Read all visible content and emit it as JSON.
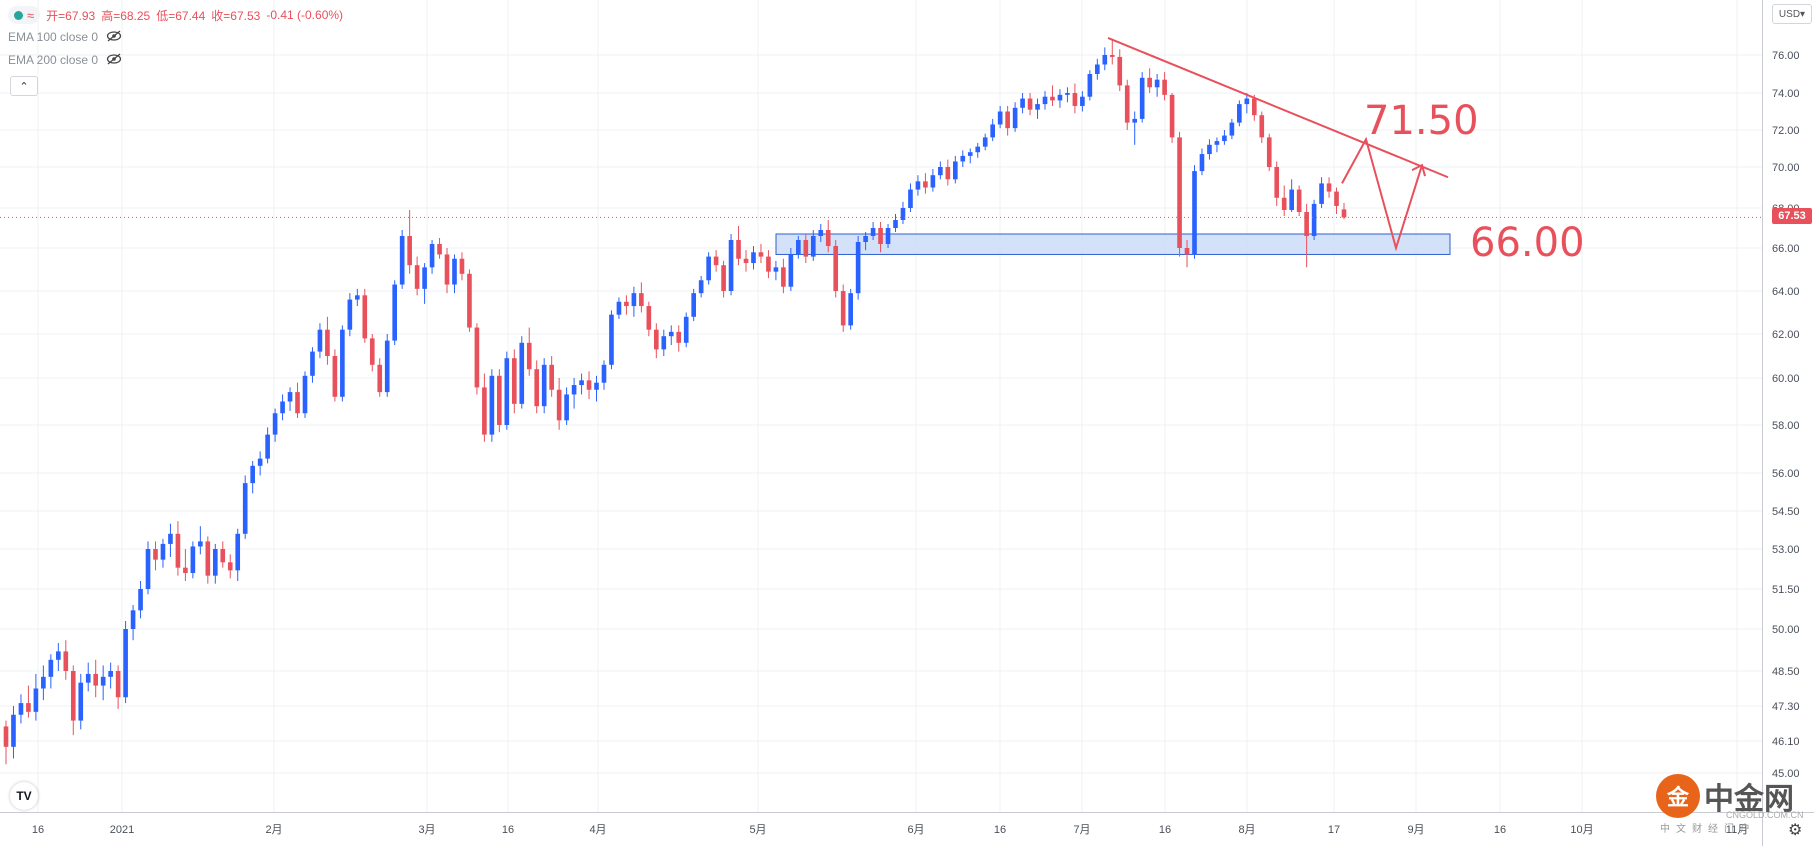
{
  "header": {
    "wave_icon": "≈",
    "open_label": "开=67.93",
    "high_label": "高=68.25",
    "low_label": "低=67.44",
    "close_label": "收=67.53",
    "change_label": "-0.41 (-0.60%)"
  },
  "indicators": [
    {
      "label": "EMA 100 close 0"
    },
    {
      "label": "EMA 200 close 0"
    }
  ],
  "currency": "USD",
  "last_price_label": "67.53",
  "annotations": {
    "upper": "71.50",
    "lower": "66.00"
  },
  "watermark": {
    "title": "中金网",
    "subtitle": "中文财经门户",
    "url": "CNGOLD.COM.CN",
    "logo": "金"
  },
  "colors": {
    "up": "#2962ff",
    "down": "#e8505b",
    "grid": "#eef0f3",
    "zone_fill": "#c9dbf7",
    "zone_stroke": "#2f5fd0",
    "annotation": "#e8505b"
  },
  "chart_data": {
    "type": "candlestick",
    "ylim": [
      44.7,
      77.5
    ],
    "y_ticks": [
      "76.00",
      "74.00",
      "72.00",
      "70.00",
      "68.00",
      "66.00",
      "64.00",
      "62.00",
      "60.00",
      "58.00",
      "56.00",
      "54.50",
      "53.00",
      "51.50",
      "50.00",
      "48.50",
      "47.30",
      "46.10",
      "45.00"
    ],
    "x_ticks": [
      "16",
      "2021",
      "2月",
      "3月",
      "16",
      "4月",
      "5月",
      "6月",
      "16",
      "7月",
      "16",
      "8月",
      "17",
      "9月",
      "16",
      "10月",
      "11月"
    ],
    "last_price": 67.53,
    "support_zone": [
      65.7,
      66.7
    ],
    "resistance_line": {
      "from": {
        "label": "7月",
        "value": 76.9
      },
      "to": {
        "label": "9月",
        "value": 69.5
      }
    },
    "projection": [
      69.2,
      71.5,
      66.0,
      70.1
    ],
    "candles": [
      [
        46.6,
        46.8,
        45.3,
        45.9
      ],
      [
        45.9,
        47.3,
        45.5,
        47.0
      ],
      [
        47.0,
        47.7,
        46.7,
        47.4
      ],
      [
        47.4,
        48.0,
        46.9,
        47.1
      ],
      [
        47.1,
        48.4,
        46.8,
        47.9
      ],
      [
        47.9,
        48.7,
        47.5,
        48.3
      ],
      [
        48.3,
        49.1,
        47.9,
        48.9
      ],
      [
        48.9,
        49.5,
        48.5,
        49.2
      ],
      [
        49.2,
        49.6,
        48.2,
        48.5
      ],
      [
        48.5,
        48.7,
        46.3,
        46.8
      ],
      [
        46.8,
        48.4,
        46.5,
        48.1
      ],
      [
        48.1,
        48.8,
        47.8,
        48.4
      ],
      [
        48.4,
        48.9,
        47.6,
        48.0
      ],
      [
        48.0,
        48.7,
        47.5,
        48.3
      ],
      [
        48.3,
        48.8,
        47.9,
        48.5
      ],
      [
        48.5,
        48.7,
        47.2,
        47.6
      ],
      [
        47.6,
        50.3,
        47.4,
        50.0
      ],
      [
        50.0,
        50.9,
        49.6,
        50.7
      ],
      [
        50.7,
        51.8,
        50.4,
        51.5
      ],
      [
        51.5,
        53.3,
        51.3,
        53.0
      ],
      [
        53.0,
        53.3,
        52.2,
        52.6
      ],
      [
        52.6,
        53.4,
        52.3,
        53.2
      ],
      [
        53.2,
        54.0,
        52.7,
        53.6
      ],
      [
        53.6,
        54.1,
        52.0,
        52.3
      ],
      [
        52.3,
        53.0,
        51.8,
        52.1
      ],
      [
        52.1,
        53.3,
        51.9,
        53.1
      ],
      [
        53.1,
        53.9,
        52.8,
        53.3
      ],
      [
        53.3,
        53.5,
        51.7,
        52.0
      ],
      [
        52.0,
        53.2,
        51.7,
        53.0
      ],
      [
        53.0,
        53.3,
        52.3,
        52.5
      ],
      [
        52.5,
        52.8,
        51.9,
        52.2
      ],
      [
        52.2,
        53.8,
        51.8,
        53.6
      ],
      [
        53.6,
        55.9,
        53.4,
        55.6
      ],
      [
        55.6,
        56.5,
        55.2,
        56.3
      ],
      [
        56.3,
        56.9,
        55.9,
        56.6
      ],
      [
        56.6,
        57.9,
        56.4,
        57.6
      ],
      [
        57.6,
        58.7,
        57.3,
        58.5
      ],
      [
        58.5,
        59.3,
        58.2,
        59.0
      ],
      [
        59.0,
        59.6,
        58.6,
        59.4
      ],
      [
        59.4,
        59.8,
        58.3,
        58.5
      ],
      [
        58.5,
        60.3,
        58.3,
        60.1
      ],
      [
        60.1,
        61.4,
        59.8,
        61.2
      ],
      [
        61.2,
        62.5,
        60.9,
        62.2
      ],
      [
        62.2,
        62.8,
        60.6,
        61.0
      ],
      [
        61.0,
        61.3,
        59.0,
        59.2
      ],
      [
        59.2,
        62.4,
        59.0,
        62.2
      ],
      [
        62.2,
        63.9,
        61.9,
        63.6
      ],
      [
        63.6,
        64.1,
        63.3,
        63.8
      ],
      [
        63.8,
        64.1,
        61.6,
        61.8
      ],
      [
        61.8,
        62.0,
        60.3,
        60.6
      ],
      [
        60.6,
        60.9,
        59.2,
        59.4
      ],
      [
        59.4,
        62.0,
        59.2,
        61.7
      ],
      [
        61.7,
        64.5,
        61.5,
        64.3
      ],
      [
        64.3,
        66.9,
        64.1,
        66.6
      ],
      [
        66.6,
        67.9,
        64.8,
        65.2
      ],
      [
        65.2,
        65.6,
        63.8,
        64.1
      ],
      [
        64.1,
        65.3,
        63.4,
        65.1
      ],
      [
        65.1,
        66.4,
        64.8,
        66.2
      ],
      [
        66.2,
        66.5,
        65.5,
        65.7
      ],
      [
        65.7,
        66.0,
        63.9,
        64.3
      ],
      [
        64.3,
        65.7,
        63.9,
        65.5
      ],
      [
        65.5,
        65.8,
        64.5,
        64.8
      ],
      [
        64.8,
        65.0,
        62.1,
        62.3
      ],
      [
        62.3,
        62.5,
        59.3,
        59.6
      ],
      [
        59.6,
        60.2,
        57.3,
        57.6
      ],
      [
        57.6,
        60.4,
        57.3,
        60.1
      ],
      [
        60.1,
        60.4,
        57.7,
        58.0
      ],
      [
        58.0,
        61.2,
        57.8,
        60.9
      ],
      [
        60.9,
        61.3,
        58.5,
        58.9
      ],
      [
        58.9,
        61.9,
        58.7,
        61.6
      ],
      [
        61.6,
        62.3,
        60.1,
        60.4
      ],
      [
        60.4,
        60.8,
        58.5,
        58.8
      ],
      [
        58.8,
        60.9,
        58.5,
        60.6
      ],
      [
        60.6,
        61.0,
        59.2,
        59.5
      ],
      [
        59.5,
        60.0,
        57.8,
        58.2
      ],
      [
        58.2,
        59.6,
        58.0,
        59.3
      ],
      [
        59.3,
        60.0,
        58.7,
        59.7
      ],
      [
        59.7,
        60.2,
        59.3,
        59.9
      ],
      [
        59.9,
        60.3,
        59.1,
        59.5
      ],
      [
        59.5,
        60.1,
        59.0,
        59.8
      ],
      [
        59.8,
        60.8,
        59.5,
        60.6
      ],
      [
        60.6,
        63.1,
        60.4,
        62.9
      ],
      [
        62.9,
        63.7,
        62.7,
        63.5
      ],
      [
        63.5,
        63.8,
        62.9,
        63.3
      ],
      [
        63.3,
        64.2,
        62.8,
        63.9
      ],
      [
        63.9,
        64.4,
        63.0,
        63.3
      ],
      [
        63.3,
        63.5,
        61.9,
        62.2
      ],
      [
        62.2,
        62.5,
        60.9,
        61.3
      ],
      [
        61.3,
        62.2,
        61.0,
        61.9
      ],
      [
        61.9,
        62.4,
        61.5,
        62.1
      ],
      [
        62.1,
        62.4,
        61.2,
        61.6
      ],
      [
        61.6,
        63.0,
        61.4,
        62.8
      ],
      [
        62.8,
        64.1,
        62.6,
        63.9
      ],
      [
        63.9,
        64.7,
        63.7,
        64.5
      ],
      [
        64.5,
        65.8,
        64.3,
        65.6
      ],
      [
        65.6,
        65.9,
        64.9,
        65.2
      ],
      [
        65.2,
        65.4,
        63.7,
        64.0
      ],
      [
        64.0,
        66.7,
        63.8,
        66.4
      ],
      [
        66.4,
        67.1,
        65.2,
        65.5
      ],
      [
        65.5,
        65.9,
        64.9,
        65.3
      ],
      [
        65.3,
        66.1,
        65.0,
        65.8
      ],
      [
        65.8,
        66.2,
        65.3,
        65.6
      ],
      [
        65.6,
        65.9,
        64.6,
        64.9
      ],
      [
        64.9,
        65.4,
        64.5,
        65.1
      ],
      [
        65.1,
        65.5,
        63.9,
        64.2
      ],
      [
        64.2,
        66.0,
        64.0,
        65.7
      ],
      [
        65.7,
        66.6,
        65.5,
        66.4
      ],
      [
        66.4,
        66.7,
        65.3,
        65.6
      ],
      [
        65.6,
        66.9,
        65.4,
        66.6
      ],
      [
        66.6,
        67.2,
        66.3,
        66.9
      ],
      [
        66.9,
        67.4,
        65.8,
        66.1
      ],
      [
        66.1,
        66.4,
        63.7,
        64.0
      ],
      [
        64.0,
        64.3,
        62.1,
        62.4
      ],
      [
        62.4,
        64.1,
        62.2,
        63.9
      ],
      [
        63.9,
        66.6,
        63.6,
        66.3
      ],
      [
        66.3,
        66.8,
        65.9,
        66.6
      ],
      [
        66.6,
        67.3,
        66.4,
        67.0
      ],
      [
        67.0,
        67.3,
        65.8,
        66.2
      ],
      [
        66.2,
        67.2,
        66.0,
        67.0
      ],
      [
        67.0,
        67.7,
        66.8,
        67.4
      ],
      [
        67.4,
        68.3,
        67.2,
        68.0
      ],
      [
        68.0,
        69.2,
        67.8,
        68.9
      ],
      [
        68.9,
        69.6,
        68.6,
        69.3
      ],
      [
        69.3,
        69.7,
        68.7,
        69.0
      ],
      [
        69.0,
        69.9,
        68.8,
        69.6
      ],
      [
        69.6,
        70.3,
        69.4,
        70.0
      ],
      [
        70.0,
        70.4,
        69.1,
        69.4
      ],
      [
        69.4,
        70.6,
        69.2,
        70.3
      ],
      [
        70.3,
        70.9,
        70.0,
        70.6
      ],
      [
        70.6,
        71.0,
        70.2,
        70.8
      ],
      [
        70.8,
        71.3,
        70.5,
        71.1
      ],
      [
        71.1,
        71.8,
        70.9,
        71.6
      ],
      [
        71.6,
        72.6,
        71.4,
        72.3
      ],
      [
        72.3,
        73.3,
        72.1,
        73.0
      ],
      [
        73.0,
        73.3,
        71.7,
        72.1
      ],
      [
        72.1,
        73.5,
        71.9,
        73.2
      ],
      [
        73.2,
        74.0,
        72.9,
        73.7
      ],
      [
        73.7,
        74.0,
        72.8,
        73.1
      ],
      [
        73.1,
        73.7,
        72.6,
        73.4
      ],
      [
        73.4,
        74.1,
        73.1,
        73.8
      ],
      [
        73.8,
        74.4,
        73.3,
        73.6
      ],
      [
        73.6,
        74.2,
        73.2,
        73.9
      ],
      [
        73.9,
        74.3,
        73.5,
        74.0
      ],
      [
        74.0,
        74.5,
        72.9,
        73.3
      ],
      [
        73.3,
        74.1,
        73.0,
        73.8
      ],
      [
        73.8,
        75.2,
        73.6,
        75.0
      ],
      [
        75.0,
        75.8,
        74.7,
        75.5
      ],
      [
        75.5,
        76.4,
        75.2,
        76.0
      ],
      [
        76.0,
        76.8,
        75.5,
        75.9
      ],
      [
        75.9,
        76.3,
        74.1,
        74.4
      ],
      [
        74.4,
        74.7,
        72.0,
        72.4
      ],
      [
        72.4,
        73.0,
        71.2,
        72.6
      ],
      [
        72.6,
        75.1,
        72.4,
        74.8
      ],
      [
        74.8,
        75.3,
        74.0,
        74.3
      ],
      [
        74.3,
        75.0,
        73.8,
        74.7
      ],
      [
        74.7,
        75.1,
        73.6,
        73.9
      ],
      [
        73.9,
        74.0,
        71.3,
        71.6
      ],
      [
        71.6,
        71.9,
        65.6,
        66.0
      ],
      [
        66.0,
        66.4,
        65.1,
        65.7
      ],
      [
        65.7,
        70.1,
        65.5,
        69.8
      ],
      [
        69.8,
        71.0,
        69.6,
        70.7
      ],
      [
        70.7,
        71.5,
        70.4,
        71.2
      ],
      [
        71.2,
        71.6,
        70.8,
        71.4
      ],
      [
        71.4,
        72.0,
        71.2,
        71.7
      ],
      [
        71.7,
        72.6,
        71.5,
        72.4
      ],
      [
        72.4,
        73.6,
        72.2,
        73.4
      ],
      [
        73.4,
        74.0,
        72.9,
        73.7
      ],
      [
        73.7,
        73.9,
        72.5,
        72.8
      ],
      [
        72.8,
        73.0,
        71.3,
        71.6
      ],
      [
        71.6,
        71.8,
        69.8,
        70.0
      ],
      [
        70.0,
        70.3,
        68.1,
        68.5
      ],
      [
        68.5,
        69.1,
        67.6,
        67.9
      ],
      [
        67.9,
        69.4,
        67.8,
        68.9
      ],
      [
        68.9,
        69.1,
        67.6,
        67.8
      ],
      [
        67.8,
        68.2,
        65.1,
        66.6
      ],
      [
        66.6,
        68.4,
        66.4,
        68.2
      ],
      [
        68.2,
        69.5,
        68.0,
        69.2
      ],
      [
        69.2,
        69.5,
        68.5,
        68.8
      ],
      [
        68.8,
        69.0,
        67.7,
        68.1
      ],
      [
        67.93,
        68.25,
        67.44,
        67.53
      ]
    ]
  }
}
